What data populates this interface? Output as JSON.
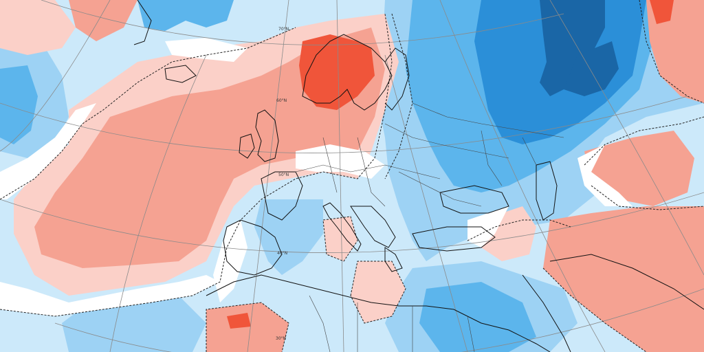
{
  "map": {
    "palette": {
      "strong_warm": "#f0553a",
      "warm": "#f5a292",
      "light_warm": "#fbd0c8",
      "neutral": "#ffffff",
      "light_cool": "#cce9fa",
      "cool": "#9dd2f4",
      "medium_cool": "#5cb5ec",
      "strong_cool": "#2b8fd8",
      "deep_cool": "#1a66a6",
      "coastline": "#111111",
      "border": "#444444",
      "graticule": "#8a8a8a",
      "contour": "#222222"
    },
    "latitude_labels": [
      "70°N",
      "60°N",
      "50°N",
      "40°N",
      "30°N"
    ]
  }
}
